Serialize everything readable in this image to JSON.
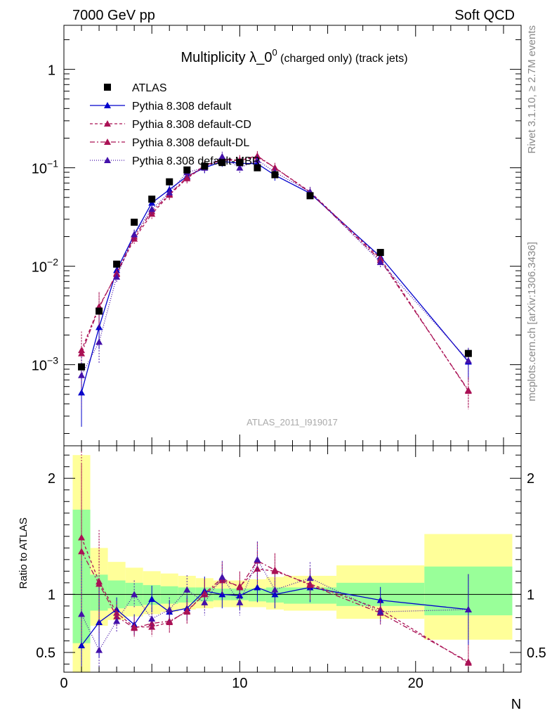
{
  "header": {
    "left": "7000 GeV pp",
    "right": "Soft QCD"
  },
  "side_labels": {
    "rivet": "Rivet 3.1.10, ≥ 2.7M events",
    "mcplots": "mcplots.cern.ch [arXiv:1306.3436]"
  },
  "chart_data": {
    "type": "scatter",
    "title_main": "Multiplicity λ_0",
    "title_sup": "0",
    "title_rest": " (charged only) (track jets)",
    "watermark": "ATLAS_2011_I919017",
    "xlabel": "N",
    "ylabel_ratio": "Ratio to ATLAS",
    "xlim": [
      0,
      26
    ],
    "ylim_main": [
      0.00015,
      2.8
    ],
    "ylim_ratio": [
      0.33,
      2.28
    ],
    "y_log": true,
    "main_ticks": [
      {
        "v": 1,
        "label": "1"
      },
      {
        "v": 0.1,
        "label": "10^-1"
      },
      {
        "v": 0.01,
        "label": "10^-2"
      },
      {
        "v": 0.001,
        "label": "10^-3"
      }
    ],
    "x_ticks": [
      0,
      10,
      20
    ],
    "ratio_ticks": [
      0.5,
      1,
      2
    ],
    "legend_placement": "top-left",
    "data": {
      "name": "ATLAS",
      "x": [
        1,
        2,
        3,
        4,
        5,
        6,
        7,
        8,
        9,
        10,
        11,
        12,
        14,
        18,
        23
      ],
      "y": [
        0.00095,
        0.0035,
        0.0105,
        0.028,
        0.048,
        0.072,
        0.095,
        0.104,
        0.113,
        0.113,
        0.1,
        0.085,
        0.052,
        0.0138,
        0.0013
      ],
      "band_edges": [
        0.5,
        1.5,
        2.5,
        3.5,
        4.5,
        5.5,
        6.5,
        7.5,
        8.5,
        9.5,
        10.5,
        11.5,
        12.5,
        15.5,
        20.5,
        25.5
      ],
      "band_stat": [
        [
          0.58,
          1.73
        ],
        [
          0.86,
          1.17
        ],
        [
          0.88,
          1.12
        ],
        [
          0.9,
          1.1
        ],
        [
          0.91,
          1.08
        ],
        [
          0.92,
          1.07
        ],
        [
          0.93,
          1.06
        ],
        [
          0.94,
          1.06
        ],
        [
          0.95,
          1.05
        ],
        [
          0.95,
          1.05
        ],
        [
          0.94,
          1.05
        ],
        [
          0.93,
          1.06
        ],
        [
          0.92,
          1.06
        ],
        [
          0.9,
          1.1
        ],
        [
          0.82,
          1.24
        ]
      ],
      "band_total": [
        [
          0.33,
          2.2
        ],
        [
          0.73,
          1.4
        ],
        [
          0.78,
          1.28
        ],
        [
          0.81,
          1.23
        ],
        [
          0.83,
          1.2
        ],
        [
          0.85,
          1.18
        ],
        [
          0.87,
          1.16
        ],
        [
          0.88,
          1.14
        ],
        [
          0.89,
          1.12
        ],
        [
          0.89,
          1.12
        ],
        [
          0.89,
          1.13
        ],
        [
          0.87,
          1.15
        ],
        [
          0.86,
          1.16
        ],
        [
          0.79,
          1.25
        ],
        [
          0.61,
          1.52
        ]
      ]
    },
    "series": [
      {
        "name": "Pythia 8.308 default",
        "color": "#0000cc",
        "dash": "",
        "x": [
          1,
          2,
          3,
          4,
          5,
          6,
          7,
          8,
          9,
          10,
          11,
          12,
          14,
          18,
          23
        ],
        "y": [
          0.00052,
          0.0024,
          0.0091,
          0.021,
          0.044,
          0.06,
          0.082,
          0.1,
          0.116,
          0.111,
          0.11,
          0.084,
          0.055,
          0.0125,
          0.00107
        ],
        "ratio": [
          0.56,
          0.76,
          0.87,
          0.74,
          0.96,
          0.85,
          0.88,
          1.03,
          1.0,
          0.99,
          1.06,
          1.0,
          1.06,
          0.95,
          0.87
        ]
      },
      {
        "name": "Pythia 8.308 default-CD",
        "color": "#aa1155",
        "dash": "4,3",
        "x": [
          1,
          2,
          3,
          4,
          5,
          6,
          7,
          8,
          9,
          10,
          11,
          12,
          14,
          18,
          23
        ],
        "y": [
          0.0014,
          0.0039,
          0.0083,
          0.019,
          0.034,
          0.053,
          0.078,
          0.104,
          0.12,
          0.118,
          0.13,
          0.1,
          0.057,
          0.012,
          0.00054
        ],
        "ratio": [
          1.49,
          1.11,
          0.84,
          0.72,
          0.72,
          0.76,
          0.86,
          1.0,
          1.12,
          1.07,
          1.22,
          1.2,
          1.09,
          0.87,
          0.41
        ]
      },
      {
        "name": "Pythia 8.308 default-DL",
        "color": "#aa1155",
        "dash": "7,3,2,3",
        "x": [
          1,
          2,
          3,
          4,
          5,
          6,
          7,
          8,
          9,
          10,
          11,
          12,
          14,
          18,
          23
        ],
        "y": [
          0.0013,
          0.0038,
          0.0085,
          0.02,
          0.036,
          0.054,
          0.08,
          0.105,
          0.122,
          0.12,
          0.132,
          0.1,
          0.056,
          0.0115,
          0.00055
        ],
        "ratio": [
          1.37,
          1.09,
          0.81,
          0.71,
          0.75,
          0.77,
          0.85,
          1.01,
          1.14,
          1.06,
          1.29,
          1.21,
          1.08,
          0.84,
          0.42
        ]
      },
      {
        "name": "Pythia 8.308 default-MBR",
        "color": "#4411aa",
        "dash": "1,2",
        "x": [
          1,
          2,
          3,
          4,
          5,
          6,
          7,
          8,
          9,
          10,
          11,
          12,
          14,
          18,
          23
        ],
        "y": [
          0.00078,
          0.0017,
          0.0078,
          0.021,
          0.038,
          0.056,
          0.09,
          0.1,
          0.13,
          0.1,
          0.12,
          0.09,
          0.057,
          0.011,
          0.0011
        ],
        "ratio": [
          0.83,
          0.52,
          0.77,
          1.0,
          0.79,
          0.87,
          1.04,
          0.93,
          1.15,
          0.93,
          1.3,
          1.04,
          1.14,
          0.85,
          0.87
        ]
      }
    ]
  }
}
